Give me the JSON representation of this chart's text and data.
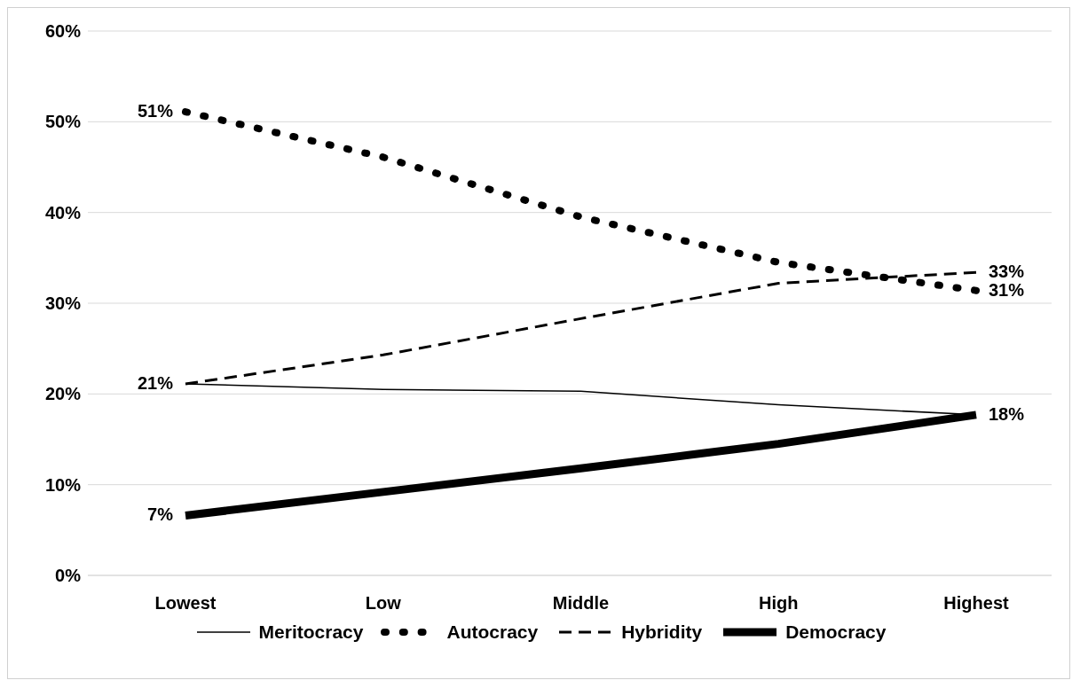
{
  "chart_data": {
    "type": "line",
    "categories": [
      "Lowest",
      "Low",
      "Middle",
      "High",
      "Highest"
    ],
    "series": [
      {
        "name": "Meritocracy",
        "color": "#000000",
        "line_style": "solid",
        "values": [
          21.1,
          20.5,
          20.3,
          18.8,
          17.7
        ],
        "value_labels": [
          "21%",
          null,
          null,
          null,
          null
        ]
      },
      {
        "name": "Autocracy",
        "color": "#000000",
        "line_style": "dotted",
        "values": [
          51.1,
          46.1,
          39.5,
          34.5,
          31.4
        ],
        "value_labels": [
          "51%",
          null,
          null,
          null,
          "31%"
        ]
      },
      {
        "name": "Hybridity",
        "color": "#000000",
        "line_style": "dashed",
        "values": [
          21.1,
          24.3,
          28.3,
          32.2,
          33.4
        ],
        "value_labels": [
          null,
          null,
          null,
          null,
          "33%"
        ]
      },
      {
        "name": "Democracy",
        "color": "#000000",
        "line_style": "solid",
        "values": [
          6.6,
          9.2,
          11.8,
          14.5,
          17.7
        ],
        "value_labels": [
          "7%",
          null,
          null,
          null,
          "18%"
        ]
      }
    ],
    "ylim": [
      0,
      60
    ],
    "yticks": [
      {
        "value": 0,
        "label": "0%"
      },
      {
        "value": 10,
        "label": "10%"
      },
      {
        "value": 20,
        "label": "20%"
      },
      {
        "value": 30,
        "label": "30%"
      },
      {
        "value": 40,
        "label": "40%"
      },
      {
        "value": 50,
        "label": "50%"
      },
      {
        "value": 60,
        "label": "60%"
      }
    ],
    "grid": "y",
    "legend": "bottom",
    "marker": "none"
  }
}
